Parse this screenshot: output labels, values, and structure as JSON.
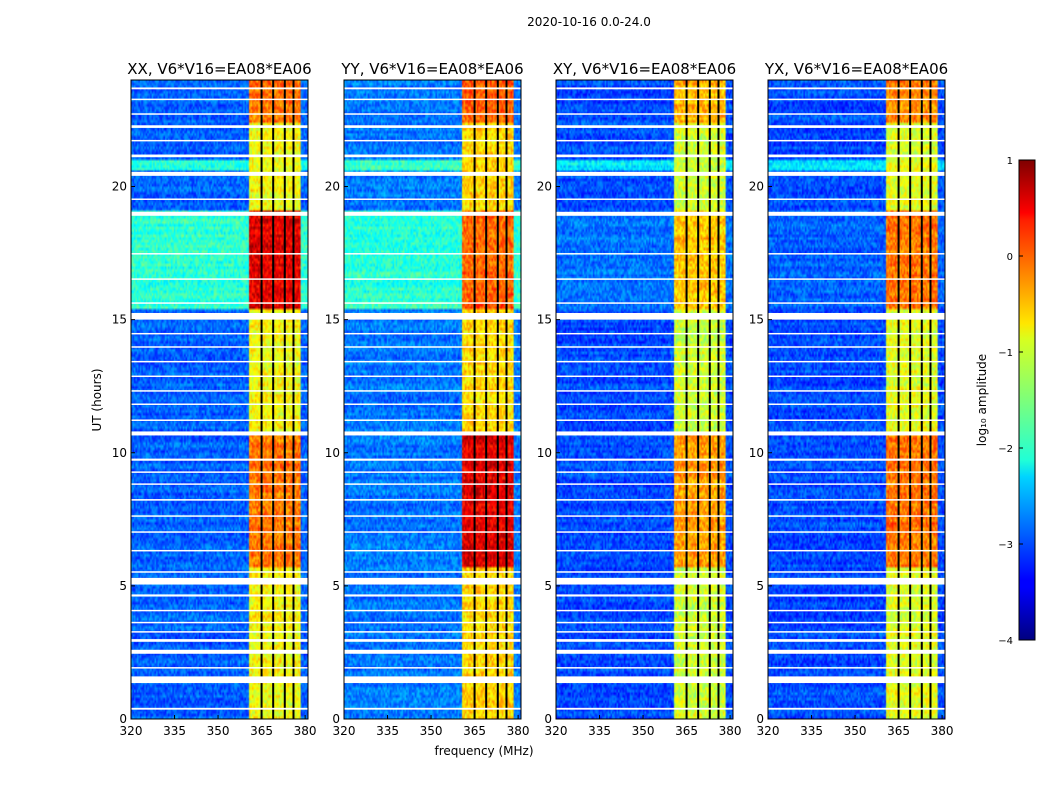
{
  "chart_data": {
    "type": "heatmap",
    "suptitle": "2020-10-16 0.0-24.0",
    "xlabel": "frequency (MHz)",
    "ylabel": "UT (hours)",
    "xlim": [
      320,
      381
    ],
    "ylim": [
      0,
      24
    ],
    "xticks": [
      "320",
      "335",
      "350",
      "365",
      "380"
    ],
    "yticks": [
      "0",
      "5",
      "10",
      "15",
      "20"
    ],
    "colorbar": {
      "label": "log₁₀ amplitude",
      "range": [
        -4,
        1
      ],
      "ticks": [
        "1",
        "0",
        "−1",
        "−2",
        "−3",
        "−4"
      ],
      "colormap": "jet"
    },
    "band": {
      "low_mhz": 360.5,
      "high_mhz": 378.5,
      "gap_mhz": [
        365,
        369,
        373,
        376
      ]
    },
    "panels": [
      {
        "title": "XX, V6*V16=EA08*EA06",
        "background_level": -2.9,
        "band_level": -0.9,
        "features": [
          {
            "t0": 15.4,
            "t1": 19.1,
            "bg": -1.9,
            "band": 0.5
          },
          {
            "t0": 5.7,
            "t1": 10.7,
            "bg": -2.9,
            "band": -0.2
          },
          {
            "t0": 20.6,
            "t1": 21.0,
            "bg": -1.9,
            "band": -0.9
          },
          {
            "t0": 22.4,
            "t1": 24.0,
            "bg": -2.9,
            "band": -0.2
          }
        ]
      },
      {
        "title": "YY, V6*V16=EA08*EA06",
        "background_level": -2.8,
        "band_level": -0.7,
        "features": [
          {
            "t0": 15.4,
            "t1": 19.1,
            "bg": -1.9,
            "band": -0.1
          },
          {
            "t0": 5.7,
            "t1": 10.7,
            "bg": -2.8,
            "band": 0.5
          },
          {
            "t0": 20.6,
            "t1": 21.0,
            "bg": -1.9,
            "band": -0.7
          },
          {
            "t0": 22.4,
            "t1": 24.0,
            "bg": -2.8,
            "band": -0.1
          }
        ]
      },
      {
        "title": "XY, V6*V16=EA08*EA06",
        "background_level": -3.0,
        "band_level": -1.1,
        "features": [
          {
            "t0": 15.4,
            "t1": 19.1,
            "bg": -2.8,
            "band": -0.6
          },
          {
            "t0": 5.7,
            "t1": 10.7,
            "bg": -3.0,
            "band": -0.4
          },
          {
            "t0": 20.6,
            "t1": 21.0,
            "bg": -2.2,
            "band": -1.1
          },
          {
            "t0": 22.4,
            "t1": 24.0,
            "bg": -3.0,
            "band": -0.5
          }
        ]
      },
      {
        "title": "YX, V6*V16=EA08*EA06",
        "background_level": -3.0,
        "band_level": -1.0,
        "features": [
          {
            "t0": 15.4,
            "t1": 19.1,
            "bg": -2.9,
            "band": -0.2
          },
          {
            "t0": 5.7,
            "t1": 10.7,
            "bg": -3.0,
            "band": -0.2
          },
          {
            "t0": 20.6,
            "t1": 21.0,
            "bg": -2.3,
            "band": -1.0
          },
          {
            "t0": 22.4,
            "t1": 24.0,
            "bg": -3.0,
            "band": -0.3
          }
        ]
      }
    ],
    "flagged_time_ranges_hours": [
      [
        0.35,
        0.42
      ],
      [
        1.35,
        1.6
      ],
      [
        1.9,
        1.95
      ],
      [
        2.45,
        2.6
      ],
      [
        2.9,
        3.0
      ],
      [
        3.25,
        3.3
      ],
      [
        3.6,
        3.65
      ],
      [
        4.05,
        4.1
      ],
      [
        4.6,
        4.68
      ],
      [
        5.05,
        5.3
      ],
      [
        5.5,
        5.55
      ],
      [
        6.3,
        6.35
      ],
      [
        7.0,
        7.05
      ],
      [
        7.6,
        7.65
      ],
      [
        8.2,
        8.26
      ],
      [
        8.8,
        8.85
      ],
      [
        9.25,
        9.3
      ],
      [
        9.7,
        9.78
      ],
      [
        10.65,
        10.8
      ],
      [
        11.2,
        11.25
      ],
      [
        11.8,
        11.85
      ],
      [
        12.3,
        12.35
      ],
      [
        12.85,
        12.9
      ],
      [
        13.4,
        13.45
      ],
      [
        13.95,
        14.0
      ],
      [
        14.45,
        14.5
      ],
      [
        15.0,
        15.25
      ],
      [
        15.6,
        15.65
      ],
      [
        16.5,
        16.55
      ],
      [
        17.45,
        17.5
      ],
      [
        18.9,
        19.05
      ],
      [
        19.5,
        19.55
      ],
      [
        20.4,
        20.55
      ],
      [
        21.1,
        21.2
      ],
      [
        21.7,
        21.75
      ],
      [
        22.2,
        22.3
      ],
      [
        22.7,
        22.75
      ],
      [
        23.25,
        23.3
      ],
      [
        23.65,
        23.72
      ]
    ]
  }
}
